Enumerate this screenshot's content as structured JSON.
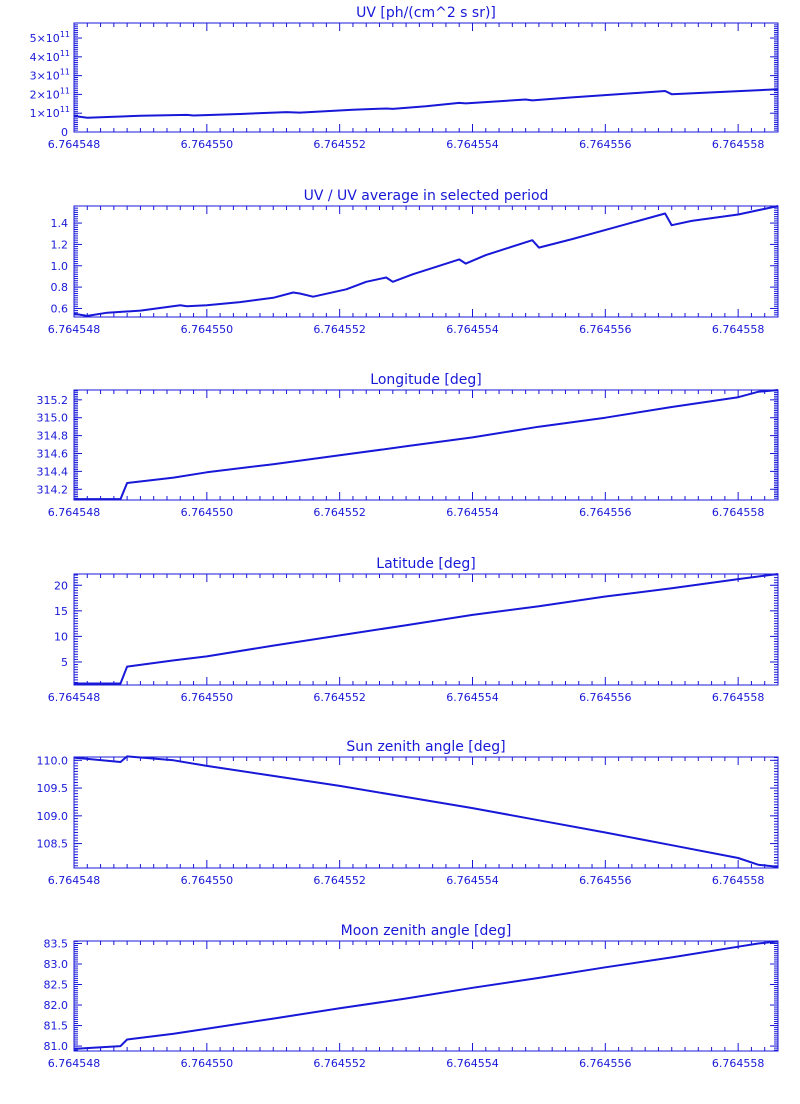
{
  "chart_data": [
    {
      "type": "line",
      "title": "UV [ph/(cm^2 s sr)]",
      "xlabel": "",
      "ylabel": "",
      "xlim": [
        6.764548,
        6.7645586
      ],
      "ylim": [
        0,
        580000000000.0
      ],
      "xticks": [
        {
          "v": 6.764548,
          "label": "6.764548"
        },
        {
          "v": 6.76455,
          "label": "6.764550"
        },
        {
          "v": 6.764552,
          "label": "6.764552"
        },
        {
          "v": 6.764554,
          "label": "6.764554"
        },
        {
          "v": 6.764556,
          "label": "6.764556"
        },
        {
          "v": 6.764558,
          "label": "6.764558"
        }
      ],
      "yticks": [
        {
          "v": 500000000000.0,
          "label": "5×10",
          "exp": "11"
        },
        {
          "v": 400000000000.0,
          "label": "4×10",
          "exp": "11"
        },
        {
          "v": 300000000000.0,
          "label": "3×10",
          "exp": "11"
        },
        {
          "v": 200000000000.0,
          "label": "2×10",
          "exp": "11"
        },
        {
          "v": 100000000000.0,
          "label": "1×10",
          "exp": "11"
        },
        {
          "v": 0,
          "label": "0"
        }
      ],
      "series": [
        {
          "x": [
            6.764548,
            6.7645482,
            6.764549,
            6.7645497,
            6.7645498,
            6.7645505,
            6.7645512,
            6.7645514,
            6.7645522,
            6.7645527,
            6.7645528,
            6.7645533,
            6.7645538,
            6.7645539,
            6.7645548,
            6.7645549,
            6.7645555,
            6.7645569,
            6.764557,
            6.7645586
          ],
          "y": [
            85000000000.0,
            76000000000.0,
            86000000000.0,
            91000000000.0,
            88000000000.0,
            96000000000.0,
            106000000000.0,
            103000000000.0,
            118000000000.0,
            125000000000.0,
            123000000000.0,
            137000000000.0,
            155000000000.0,
            152000000000.0,
            173000000000.0,
            168000000000.0,
            184000000000.0,
            218000000000.0,
            201000000000.0,
            227000000000.0
          ]
        }
      ]
    },
    {
      "type": "line",
      "title": "UV / UV average in selected period",
      "xlabel": "",
      "ylabel": "",
      "xlim": [
        6.764548,
        6.7645586
      ],
      "ylim": [
        0.52,
        1.56
      ],
      "xticks": [
        {
          "v": 6.764548,
          "label": "6.764548"
        },
        {
          "v": 6.76455,
          "label": "6.764550"
        },
        {
          "v": 6.764552,
          "label": "6.764552"
        },
        {
          "v": 6.764554,
          "label": "6.764554"
        },
        {
          "v": 6.764556,
          "label": "6.764556"
        },
        {
          "v": 6.764558,
          "label": "6.764558"
        }
      ],
      "yticks": [
        {
          "v": 1.4,
          "label": "1.4"
        },
        {
          "v": 1.2,
          "label": "1.2"
        },
        {
          "v": 1.0,
          "label": "1.0"
        },
        {
          "v": 0.8,
          "label": "0.8"
        },
        {
          "v": 0.6,
          "label": "0.6"
        }
      ],
      "series": [
        {
          "x": [
            6.764548,
            6.7645482,
            6.7645485,
            6.764549,
            6.7645496,
            6.7645497,
            6.76455,
            6.7645505,
            6.764551,
            6.7645513,
            6.7645514,
            6.7645516,
            6.7645521,
            6.7645524,
            6.7645527,
            6.7645528,
            6.7645531,
            6.7645535,
            6.7645538,
            6.7645539,
            6.7645542,
            6.7645545,
            6.7645549,
            6.764555,
            6.7645555,
            6.7645562,
            6.7645569,
            6.764557,
            6.7645573,
            6.764558,
            6.7645586
          ],
          "y": [
            0.55,
            0.53,
            0.56,
            0.58,
            0.63,
            0.62,
            0.63,
            0.66,
            0.7,
            0.75,
            0.74,
            0.71,
            0.78,
            0.85,
            0.89,
            0.85,
            0.92,
            1.0,
            1.06,
            1.02,
            1.1,
            1.16,
            1.24,
            1.17,
            1.25,
            1.37,
            1.49,
            1.38,
            1.42,
            1.48,
            1.56
          ]
        }
      ]
    },
    {
      "type": "line",
      "title": "Longitude [deg]",
      "xlabel": "",
      "ylabel": "",
      "xlim": [
        6.764548,
        6.7645586
      ],
      "ylim": [
        314.08,
        315.31
      ],
      "xticks": [
        {
          "v": 6.764548,
          "label": "6.764548"
        },
        {
          "v": 6.76455,
          "label": "6.764550"
        },
        {
          "v": 6.764552,
          "label": "6.764552"
        },
        {
          "v": 6.764554,
          "label": "6.764554"
        },
        {
          "v": 6.764556,
          "label": "6.764556"
        },
        {
          "v": 6.764558,
          "label": "6.764558"
        }
      ],
      "yticks": [
        {
          "v": 315.2,
          "label": "315.2"
        },
        {
          "v": 315.0,
          "label": "315.0"
        },
        {
          "v": 314.8,
          "label": "314.8"
        },
        {
          "v": 314.6,
          "label": "314.6"
        },
        {
          "v": 314.4,
          "label": "314.4"
        },
        {
          "v": 314.2,
          "label": "314.2"
        }
      ],
      "series": [
        {
          "x": [
            6.764548,
            6.7645487,
            6.7645488,
            6.7645495,
            6.76455,
            6.764551,
            6.764552,
            6.764553,
            6.764554,
            6.764555,
            6.764556,
            6.764557,
            6.764558,
            6.7645583,
            6.7645586
          ],
          "y": [
            314.09,
            314.09,
            314.27,
            314.33,
            314.39,
            314.48,
            314.58,
            314.68,
            314.78,
            314.9,
            315.0,
            315.12,
            315.23,
            315.29,
            315.31
          ]
        }
      ]
    },
    {
      "type": "line",
      "title": "Latitude [deg]",
      "xlabel": "",
      "ylabel": "",
      "xlim": [
        6.764548,
        6.7645586
      ],
      "ylim": [
        0.5,
        22.2
      ],
      "xticks": [
        {
          "v": 6.764548,
          "label": "6.764548"
        },
        {
          "v": 6.76455,
          "label": "6.764550"
        },
        {
          "v": 6.764552,
          "label": "6.764552"
        },
        {
          "v": 6.764554,
          "label": "6.764554"
        },
        {
          "v": 6.764556,
          "label": "6.764556"
        },
        {
          "v": 6.764558,
          "label": "6.764558"
        }
      ],
      "yticks": [
        {
          "v": 20,
          "label": "20"
        },
        {
          "v": 15,
          "label": "15"
        },
        {
          "v": 10,
          "label": "10"
        },
        {
          "v": 5,
          "label": "5"
        }
      ],
      "series": [
        {
          "x": [
            6.764548,
            6.7645487,
            6.7645488,
            6.7645495,
            6.76455,
            6.764551,
            6.764552,
            6.764553,
            6.764554,
            6.764555,
            6.764556,
            6.764557,
            6.764558,
            6.7645586
          ],
          "y": [
            0.8,
            0.8,
            4.1,
            5.3,
            6.1,
            8.2,
            10.2,
            12.2,
            14.2,
            15.9,
            17.8,
            19.4,
            21.2,
            22.2
          ]
        }
      ]
    },
    {
      "type": "line",
      "title": "Sun zenith angle [deg]",
      "xlabel": "",
      "ylabel": "",
      "xlim": [
        6.764548,
        6.7645586
      ],
      "ylim": [
        108.06,
        110.06
      ],
      "xticks": [
        {
          "v": 6.764548,
          "label": "6.764548"
        },
        {
          "v": 6.76455,
          "label": "6.764550"
        },
        {
          "v": 6.764552,
          "label": "6.764552"
        },
        {
          "v": 6.764554,
          "label": "6.764554"
        },
        {
          "v": 6.764556,
          "label": "6.764556"
        },
        {
          "v": 6.764558,
          "label": "6.764558"
        }
      ],
      "yticks": [
        {
          "v": 110.0,
          "label": "110.0"
        },
        {
          "v": 109.5,
          "label": "109.5"
        },
        {
          "v": 109.0,
          "label": "109.0"
        },
        {
          "v": 108.5,
          "label": "108.5"
        }
      ],
      "series": [
        {
          "x": [
            6.764548,
            6.7645487,
            6.7645488,
            6.7645495,
            6.76455,
            6.764551,
            6.764552,
            6.764553,
            6.764554,
            6.764555,
            6.764556,
            6.764557,
            6.764558,
            6.7645583,
            6.7645586
          ],
          "y": [
            110.05,
            109.97,
            110.07,
            110.0,
            109.9,
            109.72,
            109.54,
            109.34,
            109.14,
            108.92,
            108.7,
            108.47,
            108.24,
            108.12,
            108.08
          ]
        }
      ]
    },
    {
      "type": "line",
      "title": "Moon zenith angle [deg]",
      "xlabel": "",
      "ylabel": "",
      "xlim": [
        6.764548,
        6.7645586
      ],
      "ylim": [
        80.88,
        83.56
      ],
      "xticks": [
        {
          "v": 6.764548,
          "label": "6.764548"
        },
        {
          "v": 6.76455,
          "label": "6.764550"
        },
        {
          "v": 6.764552,
          "label": "6.764552"
        },
        {
          "v": 6.764554,
          "label": "6.764554"
        },
        {
          "v": 6.764556,
          "label": "6.764556"
        },
        {
          "v": 6.764558,
          "label": "6.764558"
        }
      ],
      "yticks": [
        {
          "v": 83.5,
          "label": "83.5"
        },
        {
          "v": 83.0,
          "label": "83.0"
        },
        {
          "v": 82.5,
          "label": "82.5"
        },
        {
          "v": 82.0,
          "label": "82.0"
        },
        {
          "v": 81.5,
          "label": "81.5"
        },
        {
          "v": 81.0,
          "label": "81.0"
        }
      ],
      "series": [
        {
          "x": [
            6.764548,
            6.7645487,
            6.7645488,
            6.7645495,
            6.76455,
            6.764551,
            6.764552,
            6.764553,
            6.764554,
            6.764555,
            6.764556,
            6.764557,
            6.764558,
            6.7645583,
            6.7645586
          ],
          "y": [
            80.93,
            81.0,
            81.16,
            81.3,
            81.42,
            81.67,
            81.92,
            82.16,
            82.42,
            82.66,
            82.92,
            83.16,
            83.42,
            83.5,
            83.55
          ]
        }
      ]
    }
  ],
  "colors": {
    "line": "#1818d8",
    "axes": "#1818d8",
    "background": "#ffffff"
  }
}
